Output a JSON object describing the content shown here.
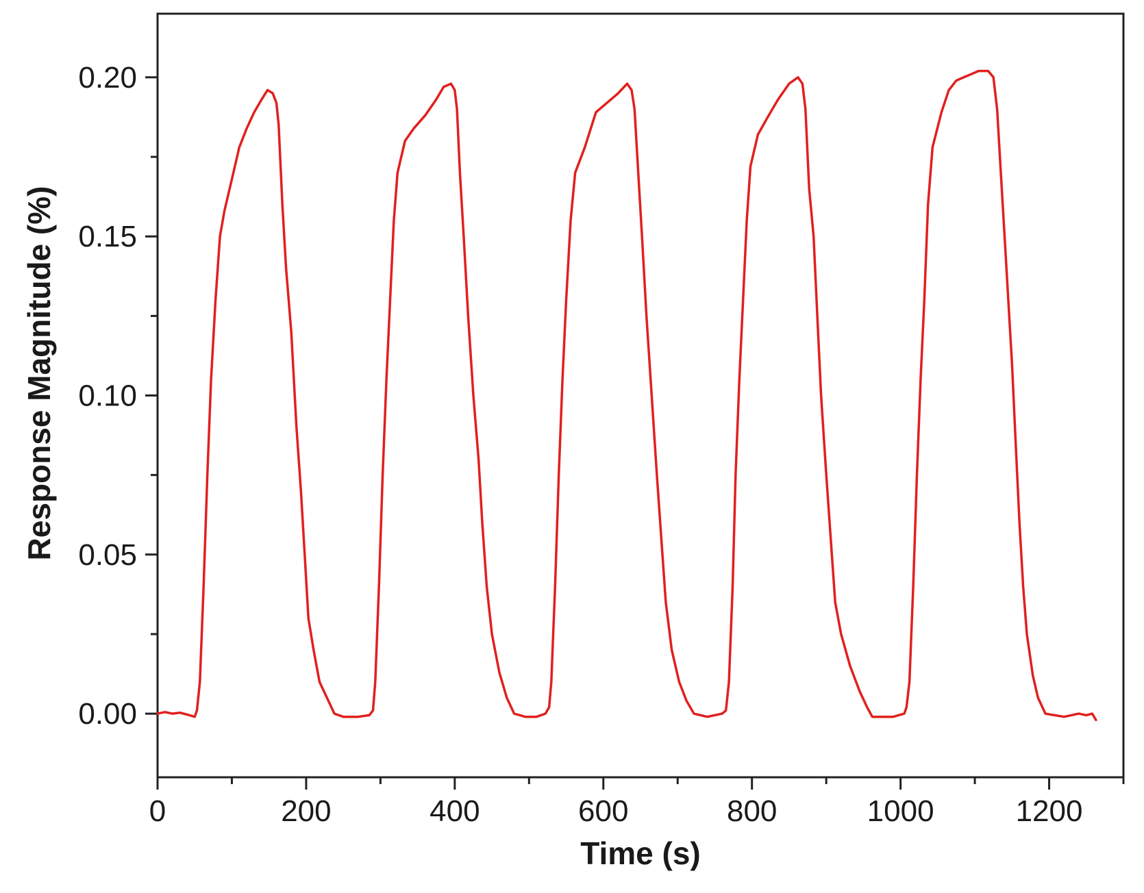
{
  "chart_data": {
    "type": "line",
    "title": "",
    "xlabel": "Time (s)",
    "ylabel": "Response Magnitude (%)",
    "xlim": [
      0,
      1300
    ],
    "ylim": [
      -0.02,
      0.22
    ],
    "x_ticks": [
      0,
      200,
      400,
      600,
      800,
      1000,
      1200
    ],
    "x_tick_labels": [
      "0",
      "200",
      "400",
      "600",
      "800",
      "1000",
      "1200"
    ],
    "x_minor_ticks": [
      100,
      300,
      500,
      700,
      900,
      1100,
      1300
    ],
    "y_ticks": [
      0.0,
      0.05,
      0.1,
      0.15,
      0.2
    ],
    "y_tick_labels": [
      "0.00",
      "0.05",
      "0.10",
      "0.15",
      "0.20"
    ],
    "y_minor_ticks": [
      -0.025,
      0.025,
      0.075,
      0.125,
      0.175
    ],
    "grid": false,
    "legend": "none",
    "line_color": "#e0201e",
    "series": [
      {
        "color": "#e0201e",
        "points": [
          [
            0,
            0.0
          ],
          [
            10,
            0.0005
          ],
          [
            20,
            0.0
          ],
          [
            30,
            0.0003
          ],
          [
            40,
            -0.0003
          ],
          [
            50,
            -0.001
          ],
          [
            53,
            0.001
          ],
          [
            57,
            0.01
          ],
          [
            62,
            0.04
          ],
          [
            67,
            0.075
          ],
          [
            72,
            0.105
          ],
          [
            78,
            0.13
          ],
          [
            84,
            0.15
          ],
          [
            90,
            0.158
          ],
          [
            100,
            0.168
          ],
          [
            110,
            0.178
          ],
          [
            120,
            0.184
          ],
          [
            130,
            0.189
          ],
          [
            140,
            0.193
          ],
          [
            148,
            0.196
          ],
          [
            155,
            0.195
          ],
          [
            160,
            0.192
          ],
          [
            163,
            0.185
          ],
          [
            168,
            0.16
          ],
          [
            173,
            0.14
          ],
          [
            180,
            0.12
          ],
          [
            187,
            0.09
          ],
          [
            193,
            0.07
          ],
          [
            198,
            0.05
          ],
          [
            203,
            0.03
          ],
          [
            210,
            0.02
          ],
          [
            218,
            0.01
          ],
          [
            228,
            0.005
          ],
          [
            238,
            0.0
          ],
          [
            250,
            -0.001
          ],
          [
            270,
            -0.001
          ],
          [
            285,
            -0.0005
          ],
          [
            290,
            0.001
          ],
          [
            293,
            0.01
          ],
          [
            298,
            0.04
          ],
          [
            303,
            0.075
          ],
          [
            308,
            0.105
          ],
          [
            313,
            0.13
          ],
          [
            318,
            0.155
          ],
          [
            323,
            0.17
          ],
          [
            333,
            0.18
          ],
          [
            345,
            0.184
          ],
          [
            360,
            0.188
          ],
          [
            375,
            0.193
          ],
          [
            385,
            0.197
          ],
          [
            395,
            0.198
          ],
          [
            400,
            0.196
          ],
          [
            403,
            0.19
          ],
          [
            407,
            0.17
          ],
          [
            412,
            0.15
          ],
          [
            418,
            0.125
          ],
          [
            425,
            0.1
          ],
          [
            432,
            0.08
          ],
          [
            437,
            0.06
          ],
          [
            443,
            0.04
          ],
          [
            450,
            0.025
          ],
          [
            460,
            0.013
          ],
          [
            470,
            0.005
          ],
          [
            480,
            0.0
          ],
          [
            495,
            -0.001
          ],
          [
            510,
            -0.001
          ],
          [
            522,
            0.0
          ],
          [
            527,
            0.002
          ],
          [
            530,
            0.01
          ],
          [
            535,
            0.04
          ],
          [
            540,
            0.075
          ],
          [
            545,
            0.105
          ],
          [
            550,
            0.13
          ],
          [
            556,
            0.155
          ],
          [
            562,
            0.17
          ],
          [
            575,
            0.178
          ],
          [
            590,
            0.189
          ],
          [
            605,
            0.192
          ],
          [
            620,
            0.195
          ],
          [
            632,
            0.198
          ],
          [
            638,
            0.196
          ],
          [
            642,
            0.19
          ],
          [
            647,
            0.17
          ],
          [
            652,
            0.15
          ],
          [
            658,
            0.125
          ],
          [
            665,
            0.1
          ],
          [
            672,
            0.075
          ],
          [
            678,
            0.055
          ],
          [
            684,
            0.035
          ],
          [
            692,
            0.02
          ],
          [
            702,
            0.01
          ],
          [
            712,
            0.004
          ],
          [
            722,
            0.0
          ],
          [
            740,
            -0.001
          ],
          [
            760,
            0.0
          ],
          [
            765,
            0.001
          ],
          [
            769,
            0.01
          ],
          [
            774,
            0.04
          ],
          [
            778,
            0.075
          ],
          [
            783,
            0.105
          ],
          [
            788,
            0.13
          ],
          [
            793,
            0.155
          ],
          [
            798,
            0.172
          ],
          [
            808,
            0.182
          ],
          [
            820,
            0.187
          ],
          [
            835,
            0.193
          ],
          [
            850,
            0.198
          ],
          [
            862,
            0.2
          ],
          [
            868,
            0.198
          ],
          [
            872,
            0.19
          ],
          [
            877,
            0.165
          ],
          [
            883,
            0.15
          ],
          [
            888,
            0.125
          ],
          [
            893,
            0.1
          ],
          [
            900,
            0.075
          ],
          [
            906,
            0.055
          ],
          [
            912,
            0.035
          ],
          [
            920,
            0.025
          ],
          [
            932,
            0.015
          ],
          [
            945,
            0.007
          ],
          [
            955,
            0.002
          ],
          [
            962,
            -0.001
          ],
          [
            990,
            -0.001
          ],
          [
            1005,
            0.0
          ],
          [
            1008,
            0.002
          ],
          [
            1012,
            0.01
          ],
          [
            1017,
            0.04
          ],
          [
            1022,
            0.075
          ],
          [
            1027,
            0.105
          ],
          [
            1032,
            0.13
          ],
          [
            1037,
            0.16
          ],
          [
            1043,
            0.178
          ],
          [
            1055,
            0.189
          ],
          [
            1065,
            0.196
          ],
          [
            1075,
            0.199
          ],
          [
            1085,
            0.2
          ],
          [
            1095,
            0.201
          ],
          [
            1105,
            0.202
          ],
          [
            1118,
            0.202
          ],
          [
            1125,
            0.2
          ],
          [
            1130,
            0.19
          ],
          [
            1135,
            0.17
          ],
          [
            1140,
            0.15
          ],
          [
            1145,
            0.13
          ],
          [
            1150,
            0.11
          ],
          [
            1155,
            0.085
          ],
          [
            1160,
            0.06
          ],
          [
            1165,
            0.04
          ],
          [
            1170,
            0.025
          ],
          [
            1178,
            0.012
          ],
          [
            1185,
            0.005
          ],
          [
            1195,
            0.0
          ],
          [
            1220,
            -0.001
          ],
          [
            1240,
            0.0
          ],
          [
            1250,
            -0.0005
          ],
          [
            1258,
            0.0
          ],
          [
            1263,
            -0.002
          ]
        ]
      }
    ]
  }
}
